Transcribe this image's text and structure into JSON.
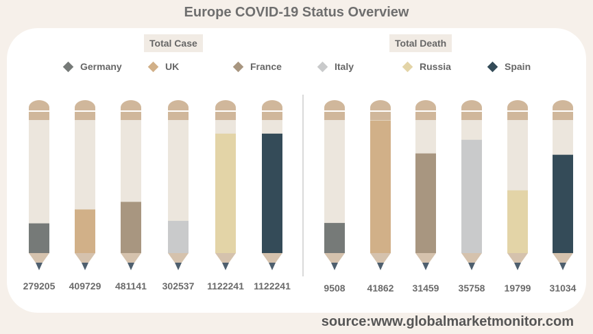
{
  "title": "Europe COVID-19 Status Overview",
  "source": "source:www.globalmarketmonitor.com",
  "colors": {
    "Germany": "#767a78",
    "UK": "#d1b088",
    "France": "#a89680",
    "Italy": "#c9cacb",
    "Russia": "#e3d4a7",
    "Spain": "#344b58",
    "pencil_body": "#ece6dd",
    "pencil_cap": "#d0b79b",
    "pencil_tip_wood": "#d5c2ad",
    "pencil_lead": "#4e5f6e"
  },
  "chart_data": [
    {
      "type": "bar",
      "title": "Total Case",
      "categories": [
        "Germany",
        "UK",
        "France",
        "Italy",
        "Russia",
        "Spain"
      ],
      "values": [
        279205,
        409729,
        481141,
        302537,
        1122241,
        1122241
      ],
      "data_labels": [
        "279205",
        "409729",
        "481141",
        "302537",
        "1122241",
        "1122241"
      ],
      "ylim": [
        0,
        1250000
      ]
    },
    {
      "type": "bar",
      "title": "Total Death",
      "categories": [
        "Germany",
        "UK",
        "France",
        "Italy",
        "Russia",
        "Spain"
      ],
      "values": [
        9508,
        41862,
        31459,
        35758,
        19799,
        31034
      ],
      "data_labels": [
        "9508",
        "41862",
        "31459",
        "35758",
        "19799",
        "31034"
      ],
      "ylim": [
        0,
        42000
      ]
    }
  ],
  "legend": [
    "Germany",
    "UK",
    "France",
    "Italy",
    "Russia",
    "Spain"
  ]
}
